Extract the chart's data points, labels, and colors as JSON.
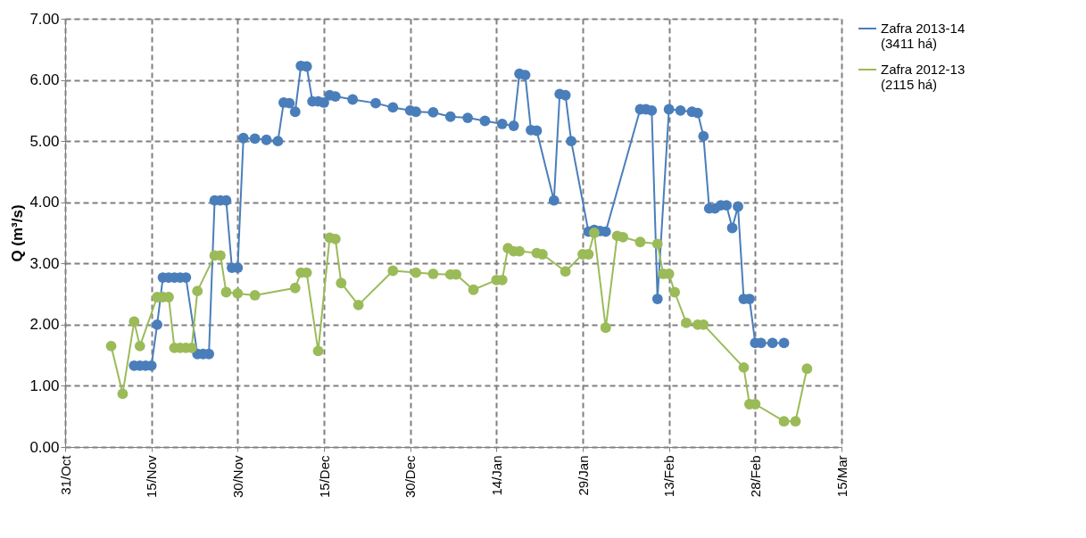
{
  "chart_data": {
    "type": "line",
    "ylabel": "Q (m³/s)",
    "xlim": [
      "2013-10-31",
      "2014-03-15"
    ],
    "xticks": [
      {
        "value": "2013-10-31",
        "label": "31/Oct"
      },
      {
        "value": "2013-11-15",
        "label": "15/Nov"
      },
      {
        "value": "2013-11-30",
        "label": "30/Nov"
      },
      {
        "value": "2013-12-15",
        "label": "15/Dec"
      },
      {
        "value": "2013-12-30",
        "label": "30/Dec"
      },
      {
        "value": "2014-01-14",
        "label": "14/Jan"
      },
      {
        "value": "2014-01-29",
        "label": "29/Jan"
      },
      {
        "value": "2014-02-13",
        "label": "13/Feb"
      },
      {
        "value": "2014-02-28",
        "label": "28/Feb"
      },
      {
        "value": "2014-03-15",
        "label": "15/Mar"
      }
    ],
    "ylim": [
      0,
      7
    ],
    "yticks": [
      {
        "value": 0,
        "label": "0.00"
      },
      {
        "value": 1,
        "label": "1.00"
      },
      {
        "value": 2,
        "label": "2.00"
      },
      {
        "value": 3,
        "label": "3.00"
      },
      {
        "value": 4,
        "label": "4.00"
      },
      {
        "value": 5,
        "label": "5.00"
      },
      {
        "value": 6,
        "label": "6.00"
      },
      {
        "value": 7,
        "label": "7.00"
      }
    ],
    "grid": true,
    "legend": "right",
    "marker": "circle",
    "line_style": "solid",
    "series": [
      {
        "name": "Zafra 2013-14\n(3411 há)",
        "color": "#4a7ebb",
        "x": [
          "2013-11-12",
          "2013-11-13",
          "2013-11-14",
          "2013-11-15",
          "2013-11-16",
          "2013-11-17",
          "2013-11-18",
          "2013-11-19",
          "2013-11-20",
          "2013-11-21",
          "2013-11-23",
          "2013-11-24",
          "2013-11-25",
          "2013-11-26",
          "2013-11-27",
          "2013-11-28",
          "2013-11-29",
          "2013-11-30",
          "2013-12-01",
          "2013-12-03",
          "2013-12-05",
          "2013-12-07",
          "2013-12-08",
          "2013-12-09",
          "2013-12-10",
          "2013-12-11",
          "2013-12-12",
          "2013-12-13",
          "2013-12-14",
          "2013-12-15",
          "2013-12-16",
          "2013-12-17",
          "2013-12-20",
          "2013-12-24",
          "2013-12-27",
          "2013-12-30",
          "2013-12-31",
          "2014-01-03",
          "2014-01-06",
          "2014-01-09",
          "2014-01-12",
          "2014-01-15",
          "2014-01-17",
          "2014-01-18",
          "2014-01-19",
          "2014-01-20",
          "2014-01-21",
          "2014-01-24",
          "2014-01-25",
          "2014-01-26",
          "2014-01-27",
          "2014-01-30",
          "2014-01-31",
          "2014-02-01",
          "2014-02-02",
          "2014-02-08",
          "2014-02-09",
          "2014-02-10",
          "2014-02-11",
          "2014-02-13",
          "2014-02-15",
          "2014-02-17",
          "2014-02-18",
          "2014-02-19",
          "2014-02-20",
          "2014-02-21",
          "2014-02-22",
          "2014-02-23",
          "2014-02-24",
          "2014-02-25",
          "2014-02-26",
          "2014-02-27",
          "2014-02-28",
          "2014-03-01",
          "2014-03-03",
          "2014-03-05"
        ],
        "values": [
          1.33,
          1.33,
          1.33,
          1.33,
          2.0,
          2.77,
          2.77,
          2.77,
          2.77,
          2.77,
          1.52,
          1.52,
          1.52,
          4.03,
          4.03,
          4.03,
          2.93,
          2.93,
          5.05,
          5.04,
          5.02,
          5.0,
          5.63,
          5.62,
          5.48,
          6.23,
          6.22,
          5.65,
          5.65,
          5.63,
          5.75,
          5.73,
          5.68,
          5.62,
          5.55,
          5.5,
          5.48,
          5.47,
          5.4,
          5.38,
          5.33,
          5.28,
          5.25,
          6.1,
          6.08,
          5.18,
          5.17,
          4.03,
          5.77,
          5.75,
          5.0,
          3.52,
          3.55,
          3.53,
          3.52,
          5.52,
          5.52,
          5.5,
          2.42,
          5.52,
          5.5,
          5.48,
          5.46,
          5.08,
          3.9,
          3.9,
          3.95,
          3.95,
          3.58,
          3.93,
          2.42,
          2.42,
          1.7,
          1.7,
          1.7,
          1.7
        ]
      },
      {
        "name": "Zafra 2012-13\n(2115 há)",
        "color": "#9bbb59",
        "x": [
          "2013-11-08",
          "2013-11-10",
          "2013-11-12",
          "2013-11-13",
          "2013-11-16",
          "2013-11-17",
          "2013-11-18",
          "2013-11-19",
          "2013-11-20",
          "2013-11-21",
          "2013-11-22",
          "2013-11-23",
          "2013-11-26",
          "2013-11-27",
          "2013-11-28",
          "2013-11-30",
          "2013-12-03",
          "2013-12-10",
          "2013-12-11",
          "2013-12-12",
          "2013-12-14",
          "2013-12-16",
          "2013-12-17",
          "2013-12-18",
          "2013-12-21",
          "2013-12-27",
          "2013-12-31",
          "2014-01-03",
          "2014-01-06",
          "2014-01-07",
          "2014-01-10",
          "2014-01-14",
          "2014-01-15",
          "2014-01-16",
          "2014-01-17",
          "2014-01-18",
          "2014-01-21",
          "2014-01-22",
          "2014-01-26",
          "2014-01-29",
          "2014-01-30",
          "2014-01-31",
          "2014-02-02",
          "2014-02-04",
          "2014-02-05",
          "2014-02-08",
          "2014-02-11",
          "2014-02-12",
          "2014-02-13",
          "2014-02-14",
          "2014-02-16",
          "2014-02-18",
          "2014-02-19",
          "2014-02-26",
          "2014-02-27",
          "2014-02-28",
          "2014-03-05",
          "2014-03-07",
          "2014-03-09"
        ],
        "values": [
          1.65,
          0.87,
          2.05,
          1.65,
          2.45,
          2.45,
          2.45,
          1.62,
          1.62,
          1.62,
          1.62,
          2.55,
          3.13,
          3.13,
          2.53,
          2.51,
          2.48,
          2.6,
          2.85,
          2.85,
          1.57,
          3.42,
          3.4,
          2.68,
          2.32,
          2.88,
          2.85,
          2.83,
          2.82,
          2.82,
          2.57,
          2.73,
          2.73,
          3.25,
          3.2,
          3.2,
          3.17,
          3.15,
          2.87,
          3.15,
          3.15,
          3.5,
          1.95,
          3.45,
          3.43,
          3.35,
          3.32,
          2.83,
          2.83,
          2.53,
          2.03,
          2.0,
          2.0,
          1.3,
          0.7,
          0.7,
          0.42,
          0.42,
          1.28
        ]
      }
    ]
  }
}
